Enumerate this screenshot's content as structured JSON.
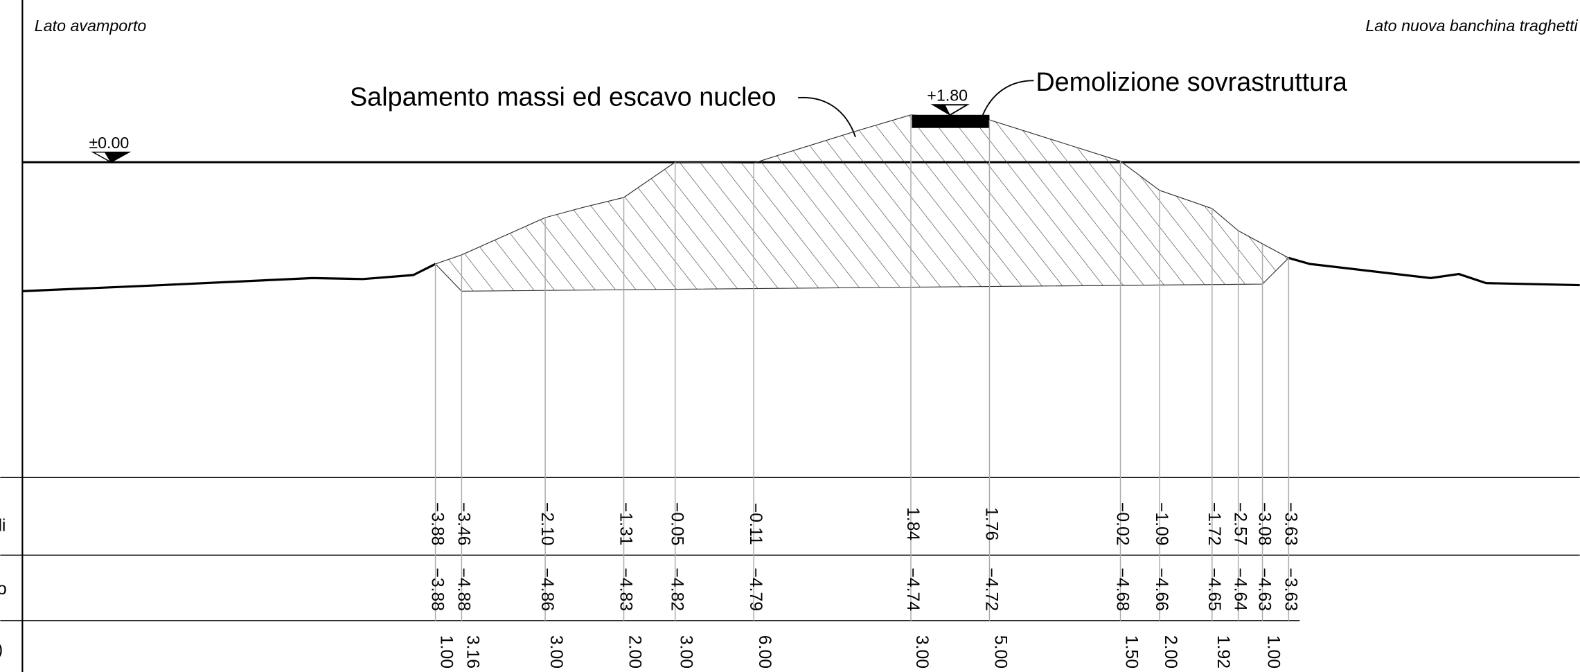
{
  "header": {
    "left": "Lato avamporto",
    "right": "Lato nuova banchina traghetti"
  },
  "annotations": {
    "excavation": "Salpamento massi ed escavo nucleo",
    "demolition": "Demolizione sovrastruttura",
    "top_level": "+1.80",
    "sea_level": "±0.00"
  },
  "table": {
    "row_labels": [
      "li",
      "o",
      ")"
    ],
    "rows": [
      [
        "−3.88",
        "−3.46",
        "−2.10",
        "−1.31",
        "−0.05",
        "−0.11",
        "1.84",
        "1.76",
        "−0.02",
        "−1.09",
        "−1.72",
        "−2.57",
        "−3.08",
        "−3.63"
      ],
      [
        "−3.88",
        "−4.88",
        "−4.86",
        "−4.83",
        "−4.82",
        "−4.79",
        "−4.74",
        "−4.72",
        "−4.68",
        "−4.66",
        "−4.65",
        "−4.64",
        "−4.63",
        "−3.63"
      ],
      [
        "1.00",
        "3.16",
        "3.00",
        "2.00",
        "3.00",
        "6.00",
        "3.00",
        "5.00",
        "1.50",
        "2.00",
        "1.92",
        "1.00"
      ]
    ]
  }
}
